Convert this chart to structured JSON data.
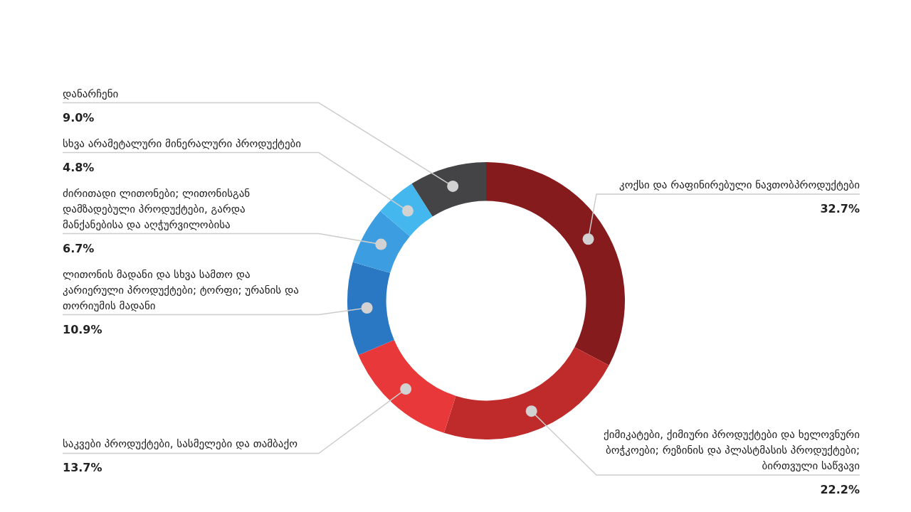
{
  "chart_data": {
    "type": "donut",
    "categories": [
      "კოქსი და რაფინირებული ნავთობპროდუქტები",
      "ქიმიკატები, ქიმიური პროდუქტები და ხელოვნური ბოჭკოები; რეზინის და პლასტმასის პროდუქტები; ბირთვული საწვავი",
      "საკვები პროდუქტები, სასმელები და თამბაქო",
      "ლითონის მადანი და სხვა სამთო და კარიერული პროდუქტები; ტორფი; ურანის და თორიუმის მადანი",
      "ძირითადი ლითონები; ლითონისგან დამზადებული პროდუქტები, გარდა მანქანებისა და აღჭურვილობისა",
      "სხვა არამეტალური მინერალური პროდუქტები",
      "დანარჩენი"
    ],
    "values": [
      32.7,
      22.2,
      13.7,
      10.9,
      6.7,
      4.8,
      9.0
    ],
    "value_labels": [
      "32.7%",
      "22.2%",
      "13.7%",
      "10.9%",
      "6.7%",
      "4.8%",
      "9.0%"
    ],
    "colors": [
      "#861b1e",
      "#bf2a2b",
      "#e8383a",
      "#2a78c4",
      "#3c9ee0",
      "#45b7ef",
      "#444446"
    ],
    "legend": false
  }
}
